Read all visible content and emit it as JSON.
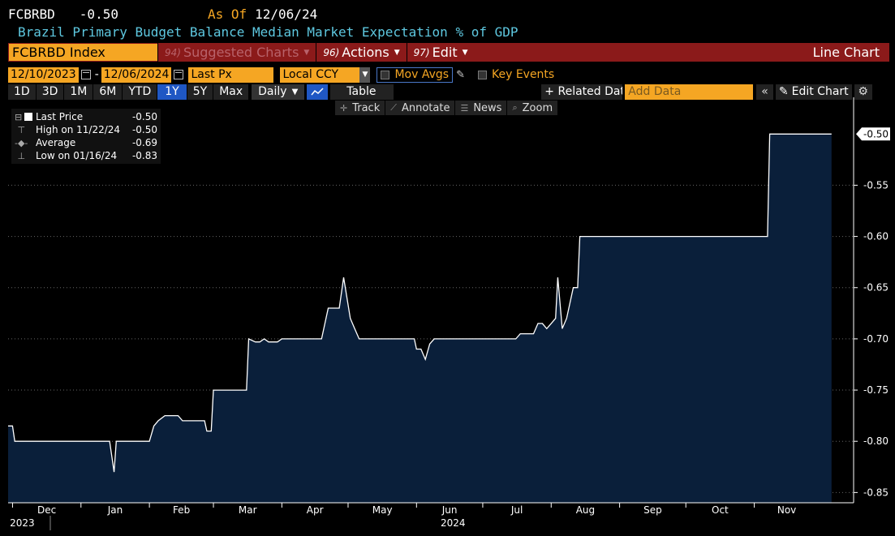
{
  "header": {
    "ticker": "FCBRBD",
    "last_value": "-0.50",
    "as_of_label": "As Of",
    "as_of_date": "12/06/24",
    "subtitle": "Brazil Primary Budget Balance Median Market Expectation % of GDP"
  },
  "toolbar1": {
    "security": "FCBRBD Index",
    "suggested_num": "94)",
    "suggested_label": "Suggested Charts",
    "actions_num": "96)",
    "actions_label": "Actions",
    "edit_num": "97)",
    "edit_label": "Edit",
    "chart_type": "Line Chart"
  },
  "toolbar2": {
    "start_date": "12/10/2023",
    "end_date": "12/06/2024",
    "field": "Last Px",
    "currency": "Local CCY",
    "mov_avgs": "Mov Avgs",
    "key_events": "Key Events"
  },
  "toolbar3": {
    "ranges": [
      "1D",
      "3D",
      "1M",
      "6M",
      "YTD",
      "1Y",
      "5Y",
      "Max"
    ],
    "active_range": "1Y",
    "frequency": "Daily",
    "table": "Table",
    "related": "+ Related Data",
    "add_data_placeholder": "Add Data",
    "edit_chart": "Edit Chart"
  },
  "tools": [
    "Track",
    "Annotate",
    "News",
    "Zoom"
  ],
  "legend": [
    {
      "label": "Last Price",
      "value": "-0.50"
    },
    {
      "label": "High on 11/22/24",
      "value": "-0.50"
    },
    {
      "label": "Average",
      "value": "-0.69"
    },
    {
      "label": "Low on 01/16/24",
      "value": "-0.83"
    }
  ],
  "colors": {
    "background": "#000000",
    "area_fill": "#0a1f3a",
    "line": "#ffffff",
    "accent_orange": "#f5a623",
    "title_bar": "#8b1a1a",
    "subtitle_cyan": "#5ec8e0",
    "active_blue": "#1f57c4"
  },
  "chart_data": {
    "type": "area",
    "title": "",
    "xlabel": "",
    "ylabel": "",
    "ylim": [
      -0.86,
      -0.48
    ],
    "yticks": [
      "-0.55",
      "-0.60",
      "-0.65",
      "-0.70",
      "-0.75",
      "-0.80",
      "-0.85"
    ],
    "last_value_label": "-0.50",
    "x_tick_labels": [
      "Dec",
      "Jan",
      "Feb",
      "Mar",
      "Apr",
      "May",
      "Jun",
      "Jul",
      "Aug",
      "Sep",
      "Oct",
      "Nov"
    ],
    "x_tick_dates": [
      "2023-12-01",
      "2024-01-01",
      "2024-02-01",
      "2024-03-01",
      "2024-04-01",
      "2024-05-01",
      "2024-06-01",
      "2024-07-01",
      "2024-08-01",
      "2024-09-01",
      "2024-10-01",
      "2024-11-01"
    ],
    "year_labels": [
      {
        "text": "2023",
        "date": "2023-12-01"
      },
      {
        "text": "2024",
        "date": "2024-06-01"
      }
    ],
    "xlim": [
      "2023-11-29",
      "2024-12-16"
    ],
    "grid": true,
    "series": [
      {
        "points": [
          [
            "2023-11-29",
            -0.785
          ],
          [
            "2023-12-01",
            -0.785
          ],
          [
            "2023-12-02",
            -0.8
          ],
          [
            "2024-01-14",
            -0.8
          ],
          [
            "2024-01-16",
            -0.83
          ],
          [
            "2024-01-17",
            -0.8
          ],
          [
            "2024-02-01",
            -0.8
          ],
          [
            "2024-02-03",
            -0.785
          ],
          [
            "2024-02-05",
            -0.78
          ],
          [
            "2024-02-08",
            -0.775
          ],
          [
            "2024-02-14",
            -0.775
          ],
          [
            "2024-02-16",
            -0.78
          ],
          [
            "2024-02-26",
            -0.78
          ],
          [
            "2024-02-27",
            -0.79
          ],
          [
            "2024-02-29",
            -0.79
          ],
          [
            "2024-03-01",
            -0.75
          ],
          [
            "2024-03-16",
            -0.75
          ],
          [
            "2024-03-17",
            -0.7
          ],
          [
            "2024-03-20",
            -0.703
          ],
          [
            "2024-03-22",
            -0.703
          ],
          [
            "2024-03-24",
            -0.7
          ],
          [
            "2024-03-26",
            -0.703
          ],
          [
            "2024-03-30",
            -0.703
          ],
          [
            "2024-04-01",
            -0.7
          ],
          [
            "2024-04-19",
            -0.7
          ],
          [
            "2024-04-22",
            -0.67
          ],
          [
            "2024-04-27",
            -0.67
          ],
          [
            "2024-04-29",
            -0.64
          ],
          [
            "2024-05-02",
            -0.68
          ],
          [
            "2024-05-04",
            -0.69
          ],
          [
            "2024-05-06",
            -0.7
          ],
          [
            "2024-05-31",
            -0.7
          ],
          [
            "2024-06-01",
            -0.71
          ],
          [
            "2024-06-03",
            -0.71
          ],
          [
            "2024-06-05",
            -0.72
          ],
          [
            "2024-06-07",
            -0.705
          ],
          [
            "2024-06-09",
            -0.7
          ],
          [
            "2024-07-16",
            -0.7
          ],
          [
            "2024-07-18",
            -0.695
          ],
          [
            "2024-07-24",
            -0.695
          ],
          [
            "2024-07-26",
            -0.685
          ],
          [
            "2024-07-28",
            -0.685
          ],
          [
            "2024-07-30",
            -0.69
          ],
          [
            "2024-08-01",
            -0.685
          ],
          [
            "2024-08-03",
            -0.68
          ],
          [
            "2024-08-04",
            -0.64
          ],
          [
            "2024-08-06",
            -0.69
          ],
          [
            "2024-08-08",
            -0.68
          ],
          [
            "2024-08-11",
            -0.65
          ],
          [
            "2024-08-13",
            -0.65
          ],
          [
            "2024-08-14",
            -0.6
          ],
          [
            "2024-11-07",
            -0.6
          ],
          [
            "2024-11-08",
            -0.5
          ],
          [
            "2024-12-06",
            -0.5
          ]
        ]
      }
    ]
  }
}
